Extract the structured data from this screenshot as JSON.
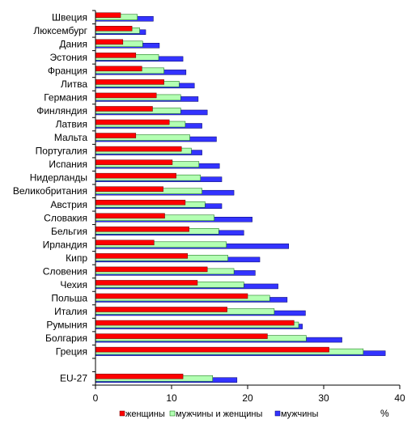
{
  "chart_data": {
    "type": "bar",
    "orientation": "horizontal",
    "categories": [
      "Швеция",
      "Люксембург",
      "Дания",
      "Эстония",
      "Франция",
      "Литва",
      "Германия",
      "Финляндия",
      "Латвия",
      "Мальта",
      "Португалия",
      "Испания",
      "Нидерланды",
      "Великобритания",
      "Австрия",
      "Словакия",
      "Бельгия",
      "Ирландия",
      "Кипр",
      "Словения",
      "Чехия",
      "Польша",
      "Италия",
      "Румыния",
      "Болгария",
      "Греция",
      "",
      "EU-27"
    ],
    "series": [
      {
        "name": "женщины",
        "color": "#ff0000",
        "values": [
          3.3,
          4.8,
          3.6,
          5.3,
          6.1,
          9.0,
          8.0,
          7.5,
          9.7,
          5.3,
          11.3,
          10.1,
          10.6,
          8.9,
          11.8,
          9.1,
          12.3,
          7.7,
          12.1,
          14.7,
          13.4,
          20.0,
          17.3,
          26.1,
          22.6,
          30.7,
          null,
          11.5
        ]
      },
      {
        "name": "мужчины и женщины",
        "color": "#b3ffb3",
        "values": [
          5.5,
          5.8,
          6.2,
          8.3,
          9.0,
          11.0,
          11.2,
          11.2,
          11.8,
          12.4,
          12.6,
          13.6,
          13.8,
          14.0,
          14.4,
          15.6,
          16.2,
          17.2,
          17.4,
          18.2,
          19.5,
          22.9,
          23.5,
          26.7,
          27.7,
          35.2,
          null,
          15.4
        ]
      },
      {
        "name": "мужчины",
        "color": "#3333ff",
        "values": [
          7.6,
          6.6,
          8.4,
          11.5,
          11.9,
          13.0,
          13.5,
          14.7,
          14.0,
          15.9,
          14.0,
          16.3,
          16.6,
          18.2,
          16.6,
          20.6,
          19.5,
          25.4,
          21.6,
          21.0,
          24.0,
          25.2,
          27.6,
          27.2,
          32.4,
          38.1,
          null,
          18.6
        ]
      }
    ],
    "xlim": [
      0,
      40
    ],
    "xticks": [
      0,
      10,
      20,
      30,
      40
    ],
    "xunit": "%",
    "grid": false,
    "legend_position": "bottom"
  }
}
